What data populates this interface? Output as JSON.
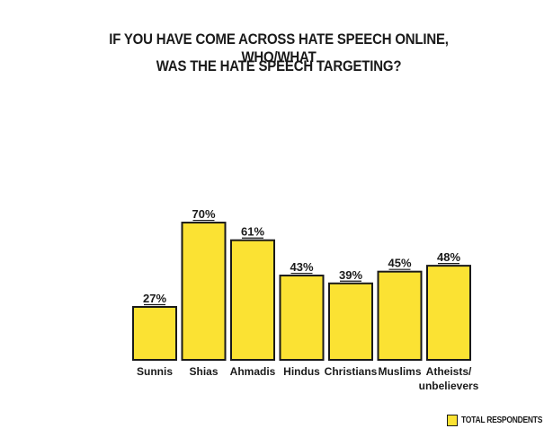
{
  "title_line1": "IF YOU HAVE COME ACROSS HATE SPEECH ONLINE, WHO/WHAT",
  "title_line2": "WAS THE HATE SPEECH TARGETING?",
  "legend_label": "TOTAL RESPONDENTS",
  "colors": {
    "bar_fill": "#fbe233",
    "bar_stroke": "#1a1a1a"
  },
  "chart_data": {
    "type": "bar",
    "title": "IF YOU HAVE COME ACROSS HATE SPEECH ONLINE, WHO/WHAT WAS THE HATE SPEECH TARGETING?",
    "categories": [
      [
        "Sunnis"
      ],
      [
        "Shias"
      ],
      [
        "Ahmadis"
      ],
      [
        "Hindus"
      ],
      [
        "Christians"
      ],
      [
        "Muslims"
      ],
      [
        "Atheists/",
        "unbelievers"
      ]
    ],
    "series": [
      {
        "name": "TOTAL RESPONDENTS",
        "values": [
          27,
          70,
          61,
          43,
          39,
          45,
          48
        ],
        "labels": [
          "27%",
          "70%",
          "61%",
          "43%",
          "39%",
          "45%",
          "48%"
        ]
      }
    ],
    "xlabel": "",
    "ylabel": "",
    "ylim": [
      0,
      100
    ],
    "grid": false,
    "legend": "bottom-right"
  }
}
